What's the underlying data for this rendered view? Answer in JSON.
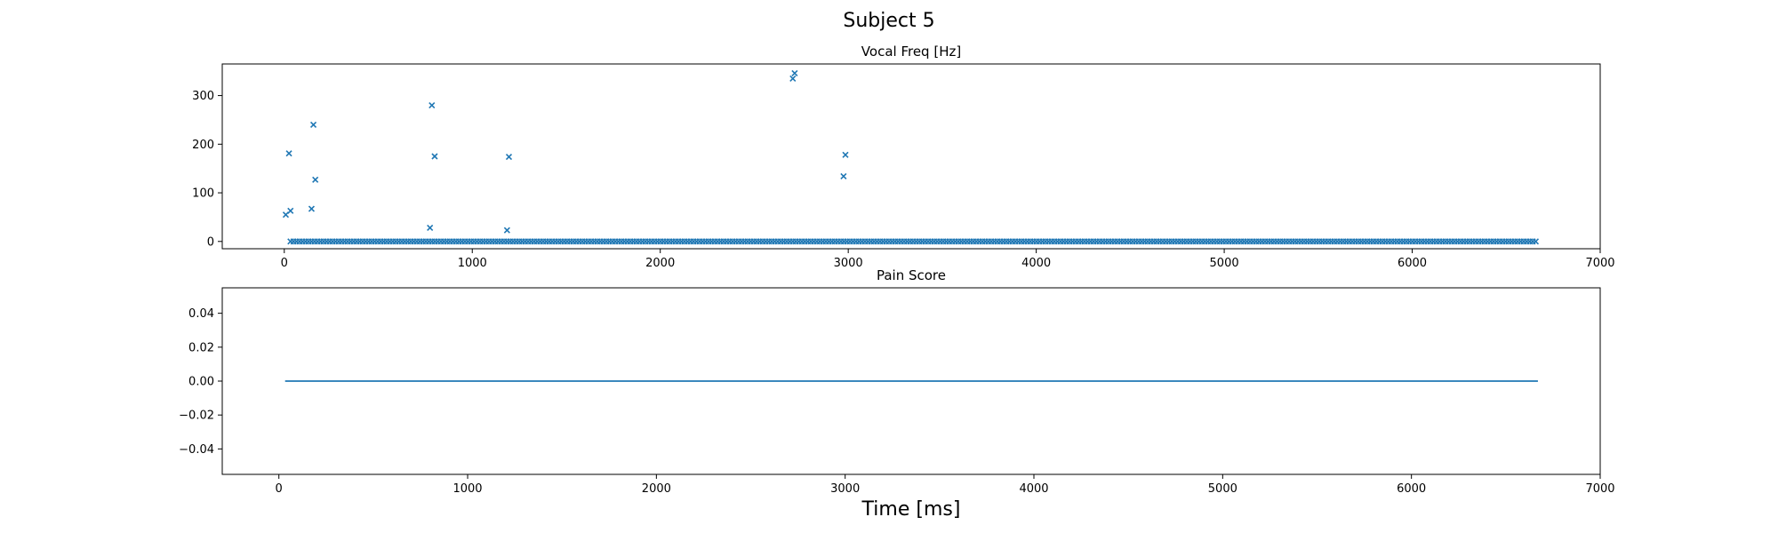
{
  "figure": {
    "title": "Subject 5",
    "xlabel": "Time [ms]"
  },
  "chart_data": [
    {
      "type": "scatter",
      "title": "Vocal Freq [Hz]",
      "xlabel": "",
      "ylabel": "",
      "xlim": [
        -330,
        7000
      ],
      "ylim": [
        -15,
        365
      ],
      "xticks": [
        0,
        1000,
        2000,
        3000,
        4000,
        5000,
        6000,
        7000
      ],
      "yticks": [
        0,
        100,
        200,
        300
      ],
      "xtick_labels": [
        "0",
        "1000",
        "2000",
        "3000",
        "4000",
        "5000",
        "6000",
        "7000"
      ],
      "ytick_labels": [
        "0",
        "100",
        "200",
        "300"
      ],
      "marker": "x",
      "color": "#1f77b4",
      "grid": false,
      "series": [
        {
          "name": "",
          "points": [
            [
              8,
              55
            ],
            [
              25,
              181
            ],
            [
              33,
              63
            ],
            [
              145,
              67
            ],
            [
              155,
              240
            ],
            [
              165,
              127
            ],
            [
              775,
              28
            ],
            [
              785,
              280
            ],
            [
              800,
              175
            ],
            [
              1185,
              23
            ],
            [
              1195,
              174
            ],
            [
              2705,
              335
            ],
            [
              2715,
              346
            ],
            [
              2975,
              134
            ],
            [
              2985,
              178
            ]
          ],
          "zero_run": {
            "x_start": 33,
            "x_end": 6670,
            "step": 16,
            "y": 0
          }
        }
      ]
    },
    {
      "type": "line",
      "title": "Pain Score",
      "xlabel": "Time [ms]",
      "ylabel": "",
      "xlim": [
        -300,
        7000
      ],
      "ylim": [
        -0.055,
        0.055
      ],
      "xticks": [
        0,
        1000,
        2000,
        3000,
        4000,
        5000,
        6000,
        7000
      ],
      "yticks": [
        -0.04,
        -0.02,
        0.0,
        0.02,
        0.04
      ],
      "xtick_labels": [
        "0",
        "1000",
        "2000",
        "3000",
        "4000",
        "5000",
        "6000",
        "7000"
      ],
      "ytick_labels": [
        "−0.04",
        "−0.02",
        "0.00",
        "0.02",
        "0.04"
      ],
      "color": "#1f77b4",
      "grid": false,
      "series": [
        {
          "name": "",
          "x": [
            33,
            6670
          ],
          "y": [
            0,
            0
          ]
        }
      ]
    }
  ]
}
